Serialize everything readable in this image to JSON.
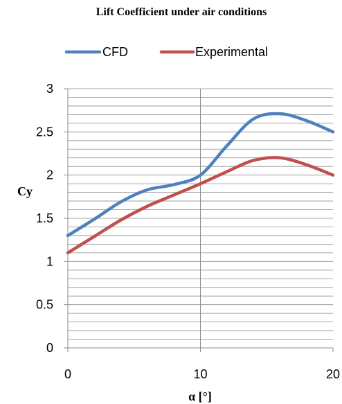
{
  "chart_data": {
    "type": "line",
    "title": "Lift Coefficient under air conditions",
    "xlabel": "α [°]",
    "ylabel": "Cy",
    "xlim": [
      0,
      20
    ],
    "ylim": [
      0,
      3
    ],
    "x_ticks": [
      "0",
      "10",
      "20"
    ],
    "y_ticks": [
      "0",
      "0.5",
      "1",
      "1.5",
      "2",
      "2.5",
      "3"
    ],
    "legend_position": "top",
    "grid": true,
    "series": [
      {
        "name": "CFD",
        "color": "#4f81bd",
        "x": [
          0,
          2,
          4,
          6,
          8,
          10,
          12,
          14,
          16,
          18,
          20
        ],
        "y": [
          1.3,
          1.49,
          1.69,
          1.83,
          1.89,
          2.0,
          2.34,
          2.65,
          2.71,
          2.63,
          2.5
        ]
      },
      {
        "name": "Experimental",
        "color": "#c0504d",
        "x": [
          0,
          2,
          4,
          6,
          8,
          10,
          12,
          14,
          16,
          18,
          20
        ],
        "y": [
          1.1,
          1.29,
          1.48,
          1.64,
          1.77,
          1.9,
          2.04,
          2.17,
          2.2,
          2.12,
          2.0
        ]
      }
    ]
  }
}
